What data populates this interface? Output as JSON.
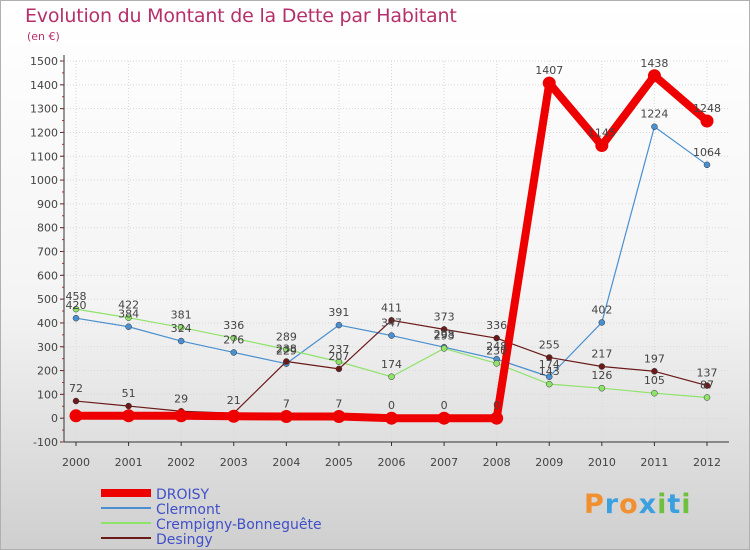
{
  "title": "Evolution du Montant de la Dette par Habitant",
  "subtitle": "(en €)",
  "logo_text": "Proxiti",
  "colors": {
    "title": "#b5306a",
    "axis": "#333333",
    "grid": "#d8d8d8",
    "label": "#444444"
  },
  "chart_data": {
    "type": "line",
    "x": [
      "2000",
      "2001",
      "2002",
      "2003",
      "2004",
      "2005",
      "2006",
      "2007",
      "2008",
      "2009",
      "2010",
      "2011",
      "2012"
    ],
    "ylim": [
      -100,
      1500
    ],
    "yticks": [
      -100,
      0,
      100,
      200,
      300,
      400,
      500,
      600,
      700,
      800,
      900,
      1000,
      1100,
      1200,
      1300,
      1400,
      1500
    ],
    "grid": true,
    "legend_position": "bottom-left",
    "series": [
      {
        "name": "DROISY",
        "color": "#ee0000",
        "values": [
          10,
          10,
          10,
          8,
          7,
          7,
          0,
          0,
          0,
          1407,
          1145,
          1438,
          1248
        ],
        "labels": [
          "",
          "",
          "",
          "",
          "7",
          "7",
          "0",
          "0",
          "0",
          "1407",
          "1145",
          "1438",
          "1248"
        ]
      },
      {
        "name": "Clermont",
        "color": "#4a90d0",
        "values": [
          420,
          384,
          324,
          276,
          229,
          391,
          347,
          298,
          248,
          174,
          402,
          1224,
          1064
        ],
        "labels": [
          "420",
          "384",
          "324",
          "276",
          "229",
          "391",
          "347",
          "298",
          "248",
          "174",
          "402",
          "1224",
          "1064"
        ]
      },
      {
        "name": "Crempigny-Bonneguête",
        "color": "#8fe36a",
        "values": [
          458,
          422,
          381,
          336,
          289,
          237,
          174,
          293,
          230,
          143,
          126,
          105,
          87
        ],
        "labels": [
          "458",
          "422",
          "381",
          "336",
          "289",
          "237",
          "174",
          "293",
          "230",
          "143",
          "126",
          "105",
          "87"
        ]
      },
      {
        "name": "Desingy",
        "color": "#6b1a1a",
        "values": [
          72,
          51,
          29,
          21,
          238,
          207,
          411,
          373,
          336,
          255,
          217,
          197,
          137
        ],
        "labels": [
          "72",
          "51",
          "29",
          "21",
          "238",
          "207",
          "411",
          "373",
          "336",
          "255",
          "217",
          "197",
          "137"
        ]
      }
    ]
  }
}
